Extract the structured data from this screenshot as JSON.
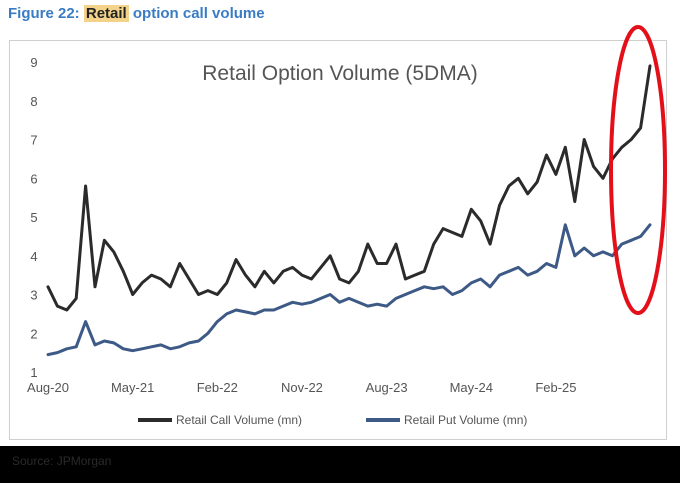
{
  "figure": {
    "label": "Figure 22:",
    "highlight": "Retail",
    "rest": "option call volume"
  },
  "source": "Source: JPMorgan",
  "colors": {
    "call": "#2b2b2b",
    "put": "#3d5a86",
    "highlight_circle": "#e3101a",
    "title_blue": "#3a7cc4",
    "axis_text": "#555555"
  },
  "chart_data": {
    "type": "line",
    "title": "Retail Option Volume (5DMA)",
    "xlabel": "",
    "ylabel": "",
    "ylim": [
      1,
      9
    ],
    "yticks": [
      1,
      2,
      3,
      4,
      5,
      6,
      7,
      8,
      9
    ],
    "xlim": [
      0,
      64
    ],
    "xtick_labels": [
      "Aug-20",
      "May-21",
      "Feb-22",
      "Nov-22",
      "Aug-23",
      "May-24",
      "Feb-25"
    ],
    "xtick_positions": [
      0,
      9,
      18,
      27,
      36,
      45,
      54
    ],
    "x_unit": "months since Aug-2020",
    "annotation": "red ellipse highlighting the latest surge (Jun-25 to Sep-25)",
    "series": [
      {
        "name": "Retail Call Volume (mn)",
        "color": "#2b2b2b",
        "x": [
          0,
          1,
          2,
          3,
          4,
          5,
          6,
          7,
          8,
          9,
          10,
          11,
          12,
          13,
          14,
          15,
          16,
          17,
          18,
          19,
          20,
          21,
          22,
          23,
          24,
          25,
          26,
          27,
          28,
          29,
          30,
          31,
          32,
          33,
          34,
          35,
          36,
          37,
          38,
          39,
          40,
          41,
          42,
          43,
          44,
          45,
          46,
          47,
          48,
          49,
          50,
          51,
          52,
          53,
          54,
          55,
          56,
          57,
          58,
          59,
          60,
          61,
          62,
          63,
          64
        ],
        "values": [
          3.2,
          2.7,
          2.6,
          2.9,
          5.8,
          3.2,
          4.4,
          4.1,
          3.6,
          3.0,
          3.3,
          3.5,
          3.4,
          3.2,
          3.8,
          3.4,
          3.0,
          3.1,
          3.0,
          3.3,
          3.9,
          3.5,
          3.2,
          3.6,
          3.3,
          3.6,
          3.7,
          3.5,
          3.4,
          3.7,
          4.0,
          3.4,
          3.3,
          3.6,
          4.3,
          3.8,
          3.8,
          4.3,
          3.4,
          3.5,
          3.6,
          4.3,
          4.7,
          4.6,
          4.5,
          5.2,
          4.9,
          4.3,
          5.3,
          5.8,
          6.0,
          5.6,
          5.9,
          6.6,
          6.1,
          6.8,
          5.4,
          7.0,
          6.3,
          6.0,
          6.5,
          6.8,
          7.0,
          7.3,
          8.9
        ]
      },
      {
        "name": "Retail Put Volume (mn)",
        "color": "#3d5a86",
        "x": [
          0,
          1,
          2,
          3,
          4,
          5,
          6,
          7,
          8,
          9,
          10,
          11,
          12,
          13,
          14,
          15,
          16,
          17,
          18,
          19,
          20,
          21,
          22,
          23,
          24,
          25,
          26,
          27,
          28,
          29,
          30,
          31,
          32,
          33,
          34,
          35,
          36,
          37,
          38,
          39,
          40,
          41,
          42,
          43,
          44,
          45,
          46,
          47,
          48,
          49,
          50,
          51,
          52,
          53,
          54,
          55,
          56,
          57,
          58,
          59,
          60,
          61,
          62,
          63,
          64
        ],
        "values": [
          1.45,
          1.5,
          1.6,
          1.65,
          2.3,
          1.7,
          1.8,
          1.75,
          1.6,
          1.55,
          1.6,
          1.65,
          1.7,
          1.6,
          1.65,
          1.75,
          1.8,
          2.0,
          2.3,
          2.5,
          2.6,
          2.55,
          2.5,
          2.6,
          2.6,
          2.7,
          2.8,
          2.75,
          2.8,
          2.9,
          3.0,
          2.8,
          2.9,
          2.8,
          2.7,
          2.75,
          2.7,
          2.9,
          3.0,
          3.1,
          3.2,
          3.15,
          3.2,
          3.0,
          3.1,
          3.3,
          3.4,
          3.2,
          3.5,
          3.6,
          3.7,
          3.5,
          3.6,
          3.8,
          3.7,
          4.8,
          4.0,
          4.2,
          4.0,
          4.1,
          4.0,
          4.3,
          4.4,
          4.5,
          4.8
        ]
      }
    ]
  }
}
